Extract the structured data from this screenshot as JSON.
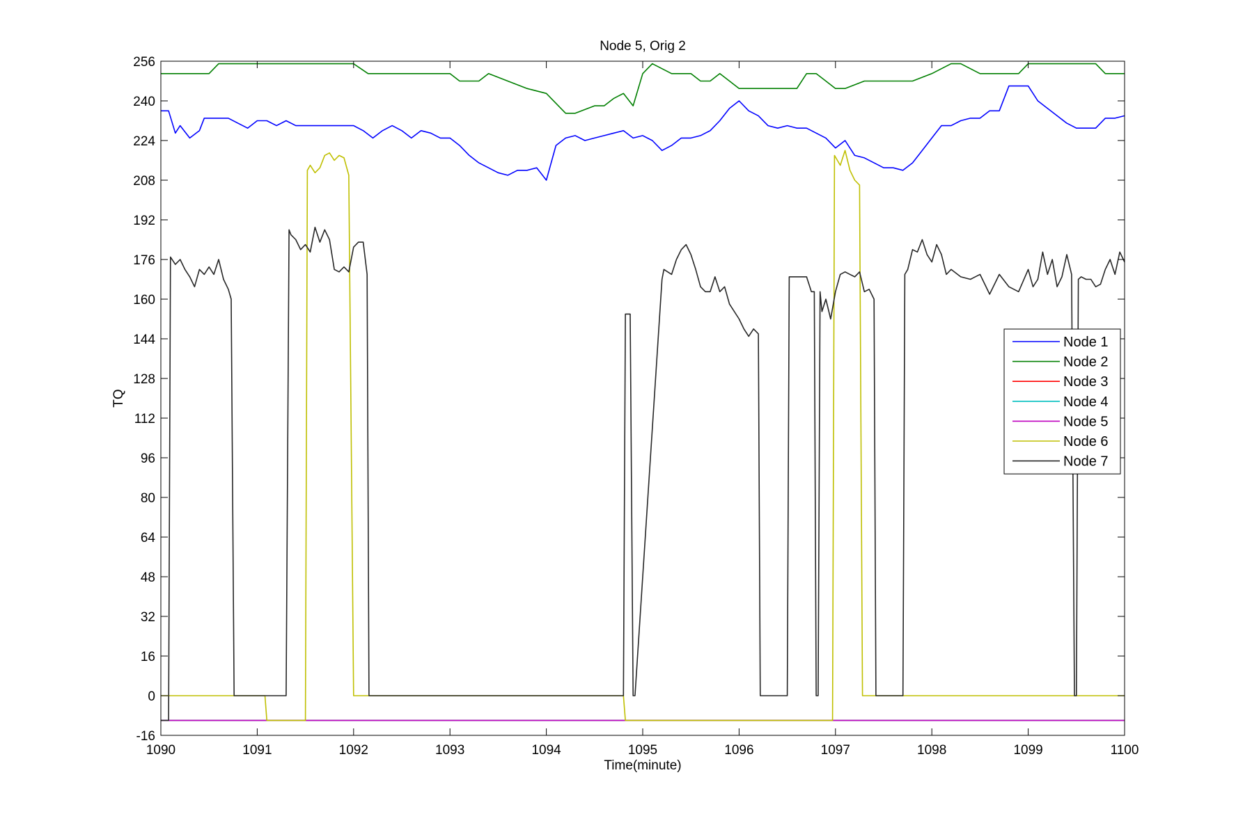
{
  "chart_data": {
    "type": "line",
    "title": "Node 5, Orig 2",
    "xlabel": "Time(minute)",
    "ylabel": "TQ",
    "xlim": [
      1090,
      1100
    ],
    "ylim": [
      -16,
      256
    ],
    "xticks": [
      1090,
      1091,
      1092,
      1093,
      1094,
      1095,
      1096,
      1097,
      1098,
      1099,
      1100
    ],
    "yticks": [
      -16,
      0,
      16,
      32,
      48,
      64,
      80,
      96,
      112,
      128,
      144,
      160,
      176,
      192,
      208,
      224,
      240,
      256
    ],
    "grid": false,
    "legend_position": "right",
    "legend_labels": [
      "Node  1",
      "Node  2",
      "Node  3",
      "Node  4",
      "Node  5",
      "Node  6",
      "Node  7"
    ],
    "series": [
      {
        "name": "Node  1",
        "color": "#0000ff",
        "x": [
          1090.0,
          1090.08,
          1090.15,
          1090.2,
          1090.3,
          1090.4,
          1090.45,
          1090.5,
          1090.55,
          1090.6,
          1090.7,
          1090.8,
          1090.9,
          1091.0,
          1091.1,
          1091.2,
          1091.3,
          1091.4,
          1091.5,
          1091.6,
          1091.8,
          1092.0,
          1092.1,
          1092.2,
          1092.3,
          1092.4,
          1092.5,
          1092.6,
          1092.7,
          1092.8,
          1092.9,
          1093.0,
          1093.1,
          1093.2,
          1093.3,
          1093.4,
          1093.5,
          1093.6,
          1093.7,
          1093.8,
          1093.9,
          1094.0,
          1094.1,
          1094.2,
          1094.3,
          1094.4,
          1094.5,
          1094.6,
          1094.7,
          1094.8,
          1094.9,
          1095.0,
          1095.1,
          1095.2,
          1095.3,
          1095.4,
          1095.5,
          1095.6,
          1095.7,
          1095.8,
          1095.9,
          1096.0,
          1096.1,
          1096.2,
          1096.3,
          1096.4,
          1096.5,
          1096.6,
          1096.7,
          1096.8,
          1096.9,
          1097.0,
          1097.1,
          1097.2,
          1097.3,
          1097.4,
          1097.5,
          1097.6,
          1097.7,
          1097.8,
          1097.9,
          1098.0,
          1098.1,
          1098.2,
          1098.3,
          1098.4,
          1098.5,
          1098.6,
          1098.7,
          1098.8,
          1098.9,
          1099.0,
          1099.1,
          1099.2,
          1099.3,
          1099.4,
          1099.5,
          1099.6,
          1099.7,
          1099.8,
          1099.9,
          1100.0
        ],
        "y": [
          236,
          236,
          227,
          230,
          225,
          228,
          233,
          233,
          233,
          233,
          233,
          231,
          229,
          232,
          232,
          230,
          232,
          230,
          230,
          230,
          230,
          230,
          228,
          225,
          228,
          230,
          228,
          225,
          228,
          227,
          225,
          225,
          222,
          218,
          215,
          213,
          211,
          210,
          212,
          212,
          213,
          208,
          222,
          225,
          226,
          224,
          225,
          226,
          227,
          228,
          225,
          226,
          224,
          220,
          222,
          225,
          225,
          226,
          228,
          232,
          237,
          240,
          236,
          234,
          230,
          229,
          230,
          229,
          229,
          227,
          225,
          221,
          224,
          218,
          217,
          215,
          213,
          213,
          212,
          215,
          220,
          225,
          230,
          230,
          232,
          233,
          233,
          236,
          236,
          246,
          246,
          246,
          240,
          237,
          234,
          231,
          229,
          229,
          229,
          233,
          233,
          234
        ]
      },
      {
        "name": "Node  2",
        "color": "#007f00",
        "x": [
          1090.0,
          1090.5,
          1090.6,
          1091.0,
          1091.5,
          1092.0,
          1092.15,
          1092.5,
          1092.8,
          1093.0,
          1093.1,
          1093.3,
          1093.4,
          1093.6,
          1093.8,
          1094.0,
          1094.2,
          1094.3,
          1094.5,
          1094.6,
          1094.7,
          1094.8,
          1094.9,
          1095.0,
          1095.1,
          1095.3,
          1095.5,
          1095.6,
          1095.7,
          1095.8,
          1095.9,
          1096.0,
          1096.1,
          1096.3,
          1096.6,
          1096.7,
          1096.8,
          1096.9,
          1097.0,
          1097.1,
          1097.3,
          1097.5,
          1097.6,
          1097.8,
          1098.0,
          1098.2,
          1098.3,
          1098.5,
          1098.7,
          1098.9,
          1099.0,
          1099.3,
          1099.6,
          1099.7,
          1099.8,
          1100.0
        ],
        "y": [
          251,
          251,
          255,
          255,
          255,
          255,
          251,
          251,
          251,
          251,
          248,
          248,
          251,
          248,
          245,
          243,
          235,
          235,
          238,
          238,
          241,
          243,
          238,
          251,
          255,
          251,
          251,
          248,
          248,
          251,
          248,
          245,
          245,
          245,
          245,
          251,
          251,
          248,
          245,
          245,
          248,
          248,
          248,
          248,
          251,
          255,
          255,
          251,
          251,
          251,
          255,
          255,
          255,
          255,
          251,
          251
        ]
      },
      {
        "name": "Node  3",
        "color": "#ff0000",
        "x": [
          1090,
          1100
        ],
        "y": [
          -10,
          -10
        ]
      },
      {
        "name": "Node  4",
        "color": "#00bfbf",
        "x": [
          1090,
          1100
        ],
        "y": [
          -10,
          -10
        ]
      },
      {
        "name": "Node  5",
        "color": "#bf00bf",
        "x": [
          1090,
          1100
        ],
        "y": [
          -10,
          -10
        ]
      },
      {
        "name": "Node  6",
        "color": "#bfbf00",
        "x": [
          1090.0,
          1091.08,
          1091.1,
          1091.5,
          1091.52,
          1091.55,
          1091.6,
          1091.65,
          1091.7,
          1091.75,
          1091.8,
          1091.85,
          1091.9,
          1091.95,
          1092.0,
          1092.02,
          1094.8,
          1094.82,
          1096.97,
          1096.99,
          1097.05,
          1097.1,
          1097.15,
          1097.2,
          1097.25,
          1097.28,
          1100.0
        ],
        "y": [
          0,
          0,
          -10,
          -10,
          212,
          214,
          211,
          213,
          218,
          219,
          216,
          218,
          217,
          210,
          0,
          0,
          0,
          -10,
          -10,
          218,
          214,
          220,
          212,
          208,
          206,
          0,
          0
        ]
      },
      {
        "name": "Node  7",
        "color": "#262626",
        "x": [
          1090.0,
          1090.08,
          1090.1,
          1090.15,
          1090.2,
          1090.25,
          1090.3,
          1090.35,
          1090.4,
          1090.45,
          1090.5,
          1090.55,
          1090.6,
          1090.65,
          1090.7,
          1090.73,
          1090.76,
          1091.3,
          1091.33,
          1091.35,
          1091.4,
          1091.45,
          1091.5,
          1091.55,
          1091.6,
          1091.65,
          1091.7,
          1091.75,
          1091.8,
          1091.85,
          1091.9,
          1091.95,
          1092.0,
          1092.05,
          1092.1,
          1092.14,
          1092.16,
          1094.8,
          1094.82,
          1094.87,
          1094.9,
          1094.92,
          1095.2,
          1095.22,
          1095.3,
          1095.35,
          1095.4,
          1095.45,
          1095.5,
          1095.55,
          1095.6,
          1095.65,
          1095.7,
          1095.75,
          1095.8,
          1095.85,
          1095.9,
          1096.0,
          1096.05,
          1096.1,
          1096.15,
          1096.2,
          1096.22,
          1096.5,
          1096.52,
          1096.6,
          1096.65,
          1096.7,
          1096.75,
          1096.78,
          1096.8,
          1096.82,
          1096.84,
          1096.86,
          1096.9,
          1096.95,
          1097.0,
          1097.05,
          1097.1,
          1097.15,
          1097.2,
          1097.25,
          1097.3,
          1097.35,
          1097.4,
          1097.42,
          1097.44,
          1097.7,
          1097.72,
          1097.75,
          1097.8,
          1097.85,
          1097.9,
          1097.95,
          1098.0,
          1098.05,
          1098.1,
          1098.15,
          1098.2,
          1098.3,
          1098.4,
          1098.5,
          1098.6,
          1098.7,
          1098.8,
          1098.9,
          1099.0,
          1099.05,
          1099.1,
          1099.15,
          1099.2,
          1099.25,
          1099.3,
          1099.35,
          1099.4,
          1099.45,
          1099.48,
          1099.5,
          1099.52,
          1099.55,
          1099.6,
          1099.65,
          1099.7,
          1099.75,
          1099.8,
          1099.85,
          1099.9,
          1099.95,
          1100.0
        ],
        "y": [
          -10,
          -10,
          177,
          174,
          176,
          172,
          169,
          165,
          172,
          170,
          173,
          170,
          176,
          168,
          164,
          160,
          0,
          0,
          188,
          186,
          184,
          180,
          182,
          179,
          189,
          183,
          188,
          184,
          172,
          171,
          173,
          171,
          181,
          183,
          183,
          170,
          0,
          0,
          154,
          154,
          0,
          0,
          168,
          172,
          170,
          176,
          180,
          182,
          178,
          172,
          165,
          163,
          163,
          169,
          163,
          165,
          158,
          152,
          148,
          145,
          148,
          146,
          0,
          0,
          169,
          169,
          169,
          169,
          163,
          163,
          0,
          0,
          163,
          155,
          160,
          152,
          163,
          170,
          171,
          170,
          169,
          171,
          163,
          164,
          160,
          0,
          0,
          0,
          170,
          172,
          180,
          179,
          184,
          178,
          175,
          182,
          178,
          170,
          172,
          169,
          168,
          170,
          162,
          170,
          165,
          163,
          172,
          165,
          168,
          179,
          170,
          176,
          165,
          169,
          178,
          170,
          0,
          0,
          168,
          169,
          168,
          168,
          165,
          166,
          172,
          176,
          170,
          179,
          175
        ]
      }
    ]
  }
}
